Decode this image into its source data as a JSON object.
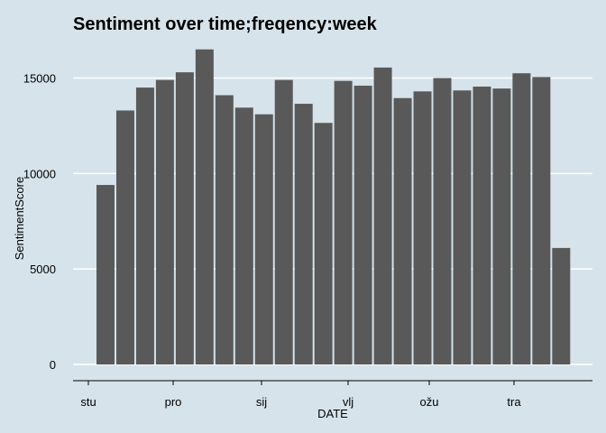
{
  "chart_data": {
    "type": "bar",
    "title": "Sentiment over time;freqency:week",
    "xlabel": "DATE",
    "ylabel": "SentimentScore",
    "values": [
      9400,
      13300,
      14500,
      14900,
      15300,
      16500,
      14100,
      13450,
      13100,
      14900,
      13650,
      12650,
      14850,
      14600,
      15550,
      13950,
      14300,
      15000,
      14350,
      14550,
      14450,
      15250,
      15050,
      6100
    ],
    "ylim": [
      0,
      17000
    ],
    "y_ticks": [
      0,
      5000,
      10000,
      15000
    ],
    "x_tick_labels": [
      "stu",
      "pro",
      "sij",
      "vlj",
      "ožu",
      "tra"
    ],
    "grid": true,
    "colors": {
      "bar": "#595959",
      "background": "#d6e3ea",
      "gridline": "#ffffff",
      "axis": "#000000"
    }
  }
}
